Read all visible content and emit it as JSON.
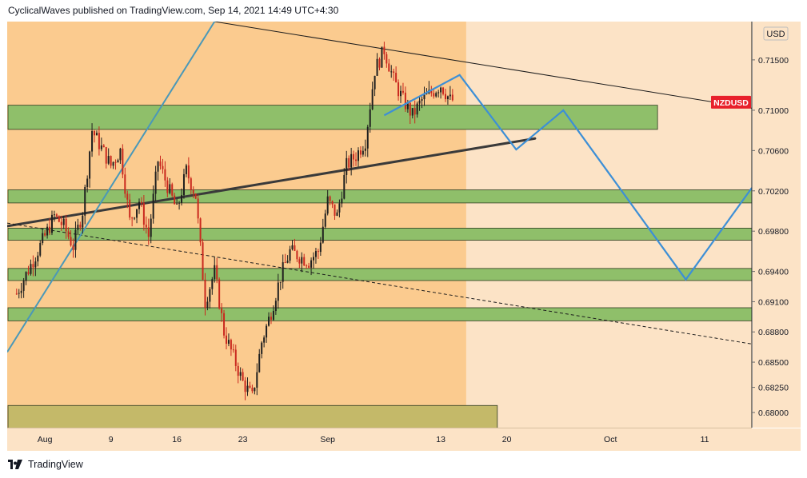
{
  "header": {
    "published_text": "CyclicalWaves published on TradingView.com, Sep 14, 2021 14:49 UTC+4:30"
  },
  "footer": {
    "brand": "TradingView",
    "logo_icon": "tradingview-logo-icon"
  },
  "colors": {
    "background_area": "#fbcb8f",
    "future_zone": "#fce3c6",
    "support_zone_fill": "#8fbf6a",
    "bottom_zone_fill": "#c4b969",
    "projection_line": "#3d8fd6",
    "candle_up": "#1f1f1f",
    "candle_down": "#c9281e",
    "symbol_badge": "#e8202b"
  },
  "chart_data": {
    "type": "candlestick",
    "symbol": "NZDUSD",
    "currency": "USD",
    "last_price": 0.7108,
    "ylim": [
      0.6785,
      0.7188
    ],
    "xlim": [
      "2021-07-29",
      "2021-10-16"
    ],
    "y_ticks": [
      "0.71500",
      "0.71000",
      "0.70600",
      "0.70200",
      "0.69800",
      "0.69400",
      "0.69100",
      "0.68800",
      "0.68500",
      "0.68250",
      "0.68000"
    ],
    "x_ticks": [
      {
        "label": "Aug",
        "date": "2021-08-02"
      },
      {
        "label": "9",
        "date": "2021-08-09"
      },
      {
        "label": "16",
        "date": "2021-08-16"
      },
      {
        "label": "23",
        "date": "2021-08-23"
      },
      {
        "label": "Sep",
        "date": "2021-09-01"
      },
      {
        "label": "13",
        "date": "2021-09-13"
      },
      {
        "label": "20",
        "date": "2021-09-20"
      },
      {
        "label": "Oct",
        "date": "2021-10-01"
      },
      {
        "label": "11",
        "date": "2021-10-11"
      }
    ],
    "price_path": [
      [
        "2021-07-30",
        0.6918
      ],
      [
        "2021-08-02",
        0.6975
      ],
      [
        "2021-08-03",
        0.6995
      ],
      [
        "2021-08-04",
        0.6985
      ],
      [
        "2021-08-05",
        0.6965
      ],
      [
        "2021-08-06",
        0.7
      ],
      [
        "2021-08-07",
        0.708
      ],
      [
        "2021-08-09",
        0.7045
      ],
      [
        "2021-08-10",
        0.706
      ],
      [
        "2021-08-11",
        0.699
      ],
      [
        "2021-08-12",
        0.701
      ],
      [
        "2021-08-13",
        0.6975
      ],
      [
        "2021-08-14",
        0.705
      ],
      [
        "2021-08-16",
        0.7
      ],
      [
        "2021-08-17",
        0.704
      ],
      [
        "2021-08-18",
        0.7015
      ],
      [
        "2021-08-19",
        0.691
      ],
      [
        "2021-08-20",
        0.694
      ],
      [
        "2021-08-21",
        0.688
      ],
      [
        "2021-08-23",
        0.683
      ],
      [
        "2021-08-24",
        0.6815
      ],
      [
        "2021-08-25",
        0.687
      ],
      [
        "2021-08-26",
        0.69
      ],
      [
        "2021-08-27",
        0.6935
      ],
      [
        "2021-08-28",
        0.696
      ],
      [
        "2021-08-30",
        0.695
      ],
      [
        "2021-08-31",
        0.696
      ],
      [
        "2021-09-01",
        0.701
      ],
      [
        "2021-09-02",
        0.6995
      ],
      [
        "2021-09-03",
        0.7045
      ],
      [
        "2021-09-04",
        0.7055
      ],
      [
        "2021-09-05",
        0.707
      ],
      [
        "2021-09-06",
        0.714
      ],
      [
        "2021-09-07",
        0.716
      ],
      [
        "2021-09-08",
        0.713
      ],
      [
        "2021-09-09",
        0.711
      ],
      [
        "2021-09-10",
        0.7095
      ],
      [
        "2021-09-11",
        0.711
      ],
      [
        "2021-09-13",
        0.7125
      ],
      [
        "2021-09-14",
        0.711
      ]
    ],
    "zones": [
      {
        "label": "resistance zone",
        "from": 0.7081,
        "to": 0.7105,
        "x_end": "2021-10-06"
      },
      {
        "label": "support zone 1",
        "from": 0.7008,
        "to": 0.7021,
        "x_end": "edge"
      },
      {
        "label": "support zone 2",
        "from": 0.6971,
        "to": 0.6983,
        "x_end": "edge"
      },
      {
        "label": "support zone 3",
        "from": 0.6931,
        "to": 0.6943,
        "x_end": "edge"
      },
      {
        "label": "support zone 4",
        "from": 0.6891,
        "to": 0.6904,
        "x_end": "edge"
      },
      {
        "label": "bottom zone",
        "from": 0.6778,
        "to": 0.6807,
        "x_end": "2021-09-19"
      }
    ],
    "trendlines": [
      {
        "style": "solid-thin",
        "from": [
          "2021-08-20",
          0.7188
        ],
        "to": [
          "2021-10-16",
          0.7102
        ]
      },
      {
        "style": "solid-thick",
        "from": [
          "2021-07-29",
          0.6985
        ],
        "to": [
          "2021-09-23",
          0.7072
        ]
      },
      {
        "style": "dashed",
        "from": [
          "2021-07-29",
          0.6988
        ],
        "to": [
          "2021-10-16",
          0.6868
        ]
      },
      {
        "style": "channel",
        "from": [
          "2021-07-29",
          0.686
        ],
        "to": [
          "2021-08-20",
          0.7188
        ]
      }
    ],
    "projection": [
      [
        "2021-09-07",
        0.7095
      ],
      [
        "2021-09-15",
        0.7135
      ],
      [
        "2021-09-21",
        0.7061
      ],
      [
        "2021-09-26",
        0.71
      ],
      [
        "2021-10-09",
        0.6932
      ],
      [
        "2021-10-16",
        0.7023
      ]
    ]
  }
}
